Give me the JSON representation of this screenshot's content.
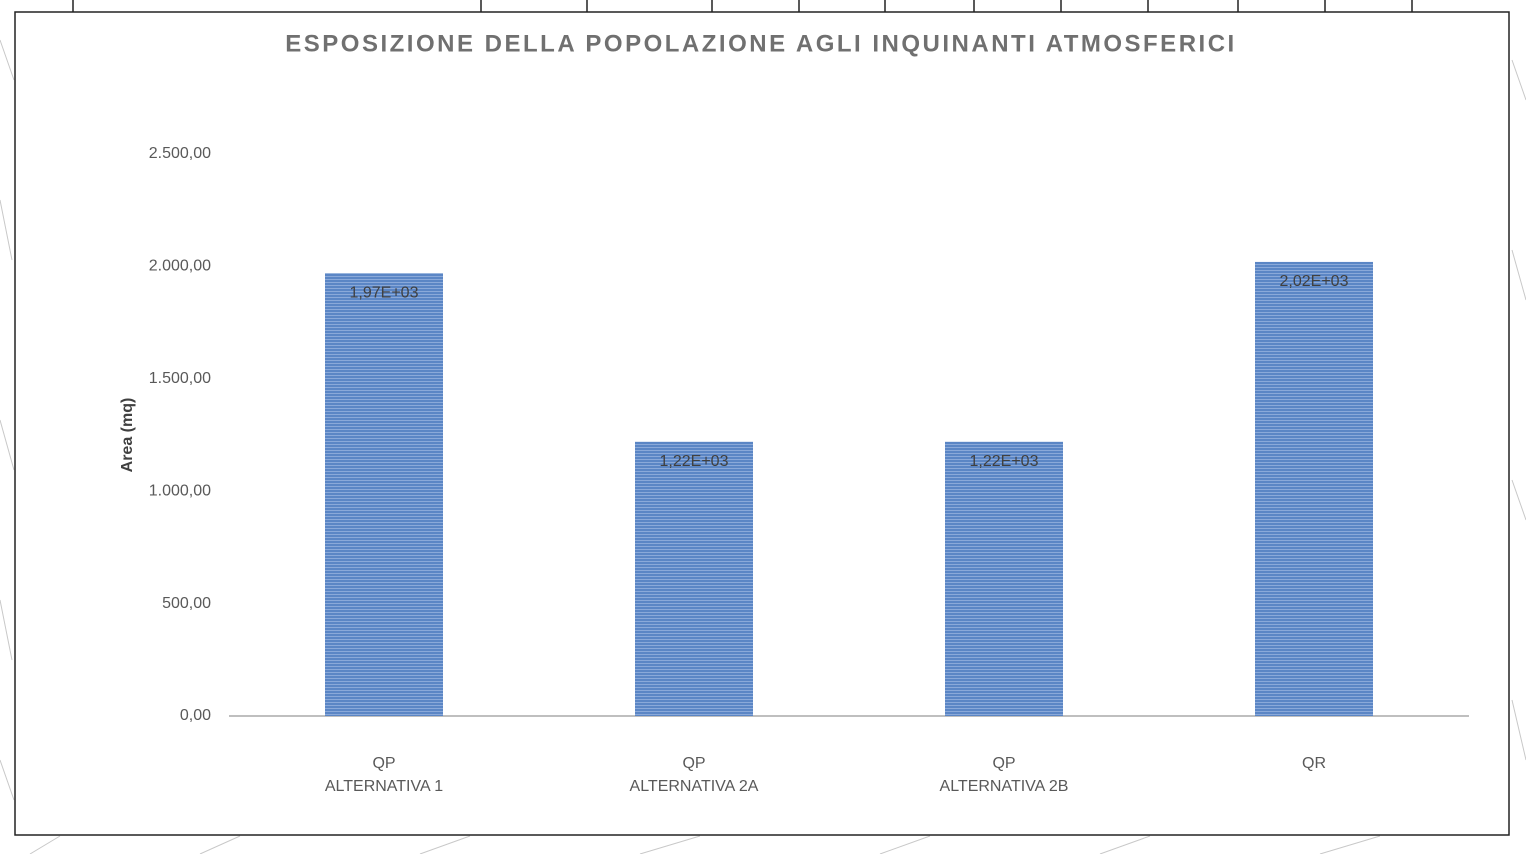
{
  "chart_data": {
    "type": "bar",
    "title": "ESPOSIZIONE DELLA POPOLAZIONE AGLI INQUINANTI ATMOSFERICI",
    "y_label": "Area (mq)",
    "categories": [
      [
        "QP",
        "ALTERNATIVA 1"
      ],
      [
        "QP",
        "ALTERNATIVA 2A"
      ],
      [
        "QP",
        "ALTERNATIVA 2B"
      ],
      [
        "QR"
      ]
    ],
    "values": [
      1970,
      1220,
      1220,
      2020
    ],
    "value_labels": [
      "1,97E+03",
      "1,22E+03",
      "1,22E+03",
      "2,02E+03"
    ],
    "color": "#5b86c5",
    "ylim": [
      0,
      2500
    ],
    "yticks": [
      {
        "value": 0,
        "label": "0,00"
      },
      {
        "value": 500,
        "label": "500,00"
      },
      {
        "value": 1000,
        "label": "1.000,00"
      },
      {
        "value": 1500,
        "label": "1.500,00"
      },
      {
        "value": 2000,
        "label": "2.000,00"
      },
      {
        "value": 2500,
        "label": "2.500,00"
      }
    ],
    "grid": false
  }
}
